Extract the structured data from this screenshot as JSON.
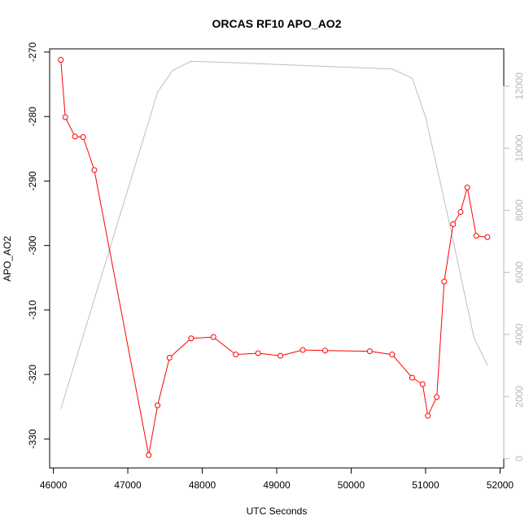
{
  "chart_data": {
    "type": "line",
    "title": "ORCAS RF10 APO_AO2",
    "xlabel": "UTC Seconds",
    "ylabel": "APO_AO2",
    "xlim": [
      45950,
      52050
    ],
    "ylim": [
      -334.5,
      -269.5
    ],
    "y2lim": [
      -300,
      13200
    ],
    "x_ticks": [
      46000,
      47000,
      48000,
      49000,
      50000,
      51000,
      52000
    ],
    "x_tick_labels": [
      "46000",
      "47000",
      "48000",
      "49000",
      "50000",
      "51000",
      "52000"
    ],
    "y_ticks": [
      -330,
      -320,
      -310,
      -300,
      -290,
      -280,
      -270
    ],
    "y_tick_labels": [
      "-330",
      "-320",
      "-310",
      "-300",
      "-290",
      "-280",
      "-270"
    ],
    "y2_ticks": [
      0,
      2000,
      4000,
      6000,
      8000,
      10000,
      12000
    ],
    "y2_tick_labels": [
      "0",
      "2000",
      "4000",
      "6000",
      "8000",
      "10000",
      "12000"
    ],
    "colors": {
      "apo": "#ff0000",
      "altitude": "#bebebe",
      "frame": "#000000",
      "right_axis": "#b8b8b8"
    },
    "series": [
      {
        "axis": "left",
        "style": "line+points",
        "x": [
          46100,
          46160,
          46290,
          46400,
          46550,
          47280,
          47400,
          47560,
          47850,
          48150,
          48450,
          48750,
          49050,
          49350,
          49650,
          50250,
          50550,
          50820,
          50960,
          51030,
          51150,
          51250,
          51370,
          51470,
          51560,
          51680,
          51830
        ],
        "y": [
          -271.2,
          -280.1,
          -283.1,
          -283.2,
          -288.3,
          -332.5,
          -324.8,
          -317.4,
          -314.4,
          -314.2,
          -316.9,
          -316.7,
          -317.1,
          -316.2,
          -316.3,
          -316.4,
          -316.9,
          -320.5,
          -321.5,
          -326.4,
          -323.5,
          -305.6,
          -296.7,
          -294.8,
          -291.0,
          -298.5,
          -298.7
        ]
      },
      {
        "axis": "right",
        "style": "line",
        "x": [
          46100,
          47400,
          47600,
          47850,
          48500,
          49500,
          50550,
          50820,
          51000,
          51300,
          51650,
          51830
        ],
        "y": [
          1600,
          11800,
          12500,
          12800,
          12750,
          12650,
          12550,
          12250,
          11000,
          7800,
          3900,
          3000
        ]
      }
    ]
  }
}
